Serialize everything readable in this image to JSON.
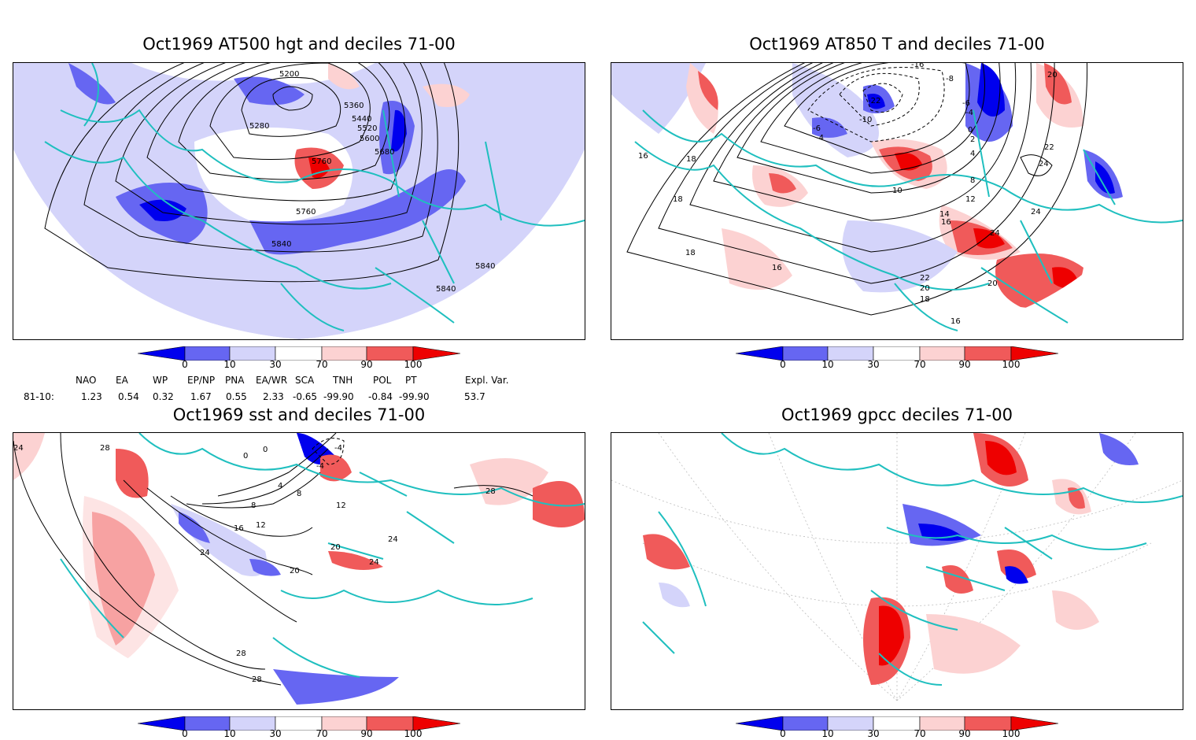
{
  "panels": [
    {
      "title": "Oct1969 AT500 hgt and deciles 71-00",
      "contour_labels": [
        "5200",
        "5280",
        "5360",
        "5440",
        "5520",
        "5600",
        "5680",
        "5760",
        "5760",
        "5840",
        "5840",
        "5840"
      ]
    },
    {
      "title": "Oct1969 AT850 T and deciles 71-00",
      "contour_labels": [
        "-16",
        "-22",
        "-10",
        "-6",
        "-4",
        "-8",
        "-6",
        "-4",
        "0",
        "2",
        "4",
        "8",
        "10",
        "12",
        "14",
        "16",
        "16",
        "18",
        "18",
        "18",
        "20",
        "22",
        "24",
        "24",
        "24",
        "20",
        "22",
        "20",
        "18",
        "16",
        "16"
      ]
    },
    {
      "title": "Oct1969 sst and deciles 71-00",
      "contour_labels": [
        "28",
        "24",
        "0",
        "0",
        "-4",
        "-4",
        "4",
        "8",
        "8",
        "12",
        "12",
        "16",
        "20",
        "20",
        "24",
        "24",
        "24",
        "28",
        "28",
        "28"
      ]
    },
    {
      "title": "Oct1969 gpcc deciles 71-00",
      "contour_labels": []
    }
  ],
  "colorbar": {
    "labels": [
      "0",
      "10",
      "30",
      "70",
      "90",
      "100"
    ],
    "colors": [
      "#0000ee",
      "#6666f2",
      "#d4d4fa",
      "#ffffff",
      "#fcd2d2",
      "#f05a5a",
      "#ee0000"
    ]
  },
  "indices": {
    "headers": [
      "NAO",
      "EA",
      "WP",
      "EP/NP",
      "PNA",
      "EA/WR",
      "SCA",
      "TNH",
      "POL",
      "PT",
      "Expl. Var."
    ],
    "row_label": "81-10:",
    "values": [
      "1.23",
      "0.54",
      "0.32",
      "1.67",
      "0.55",
      "2.33",
      "-0.65",
      "-99.90",
      "-0.84",
      "-99.90",
      "53.7"
    ]
  },
  "colors": {
    "coastline": "#1fbfbf",
    "contour": "#000000",
    "dark_blue": "#0000ee",
    "mid_blue": "#6666f2",
    "light_blue": "#d4d4fa",
    "light_red": "#fcd2d2",
    "mid_red": "#f05a5a",
    "dark_red": "#ee0000"
  }
}
